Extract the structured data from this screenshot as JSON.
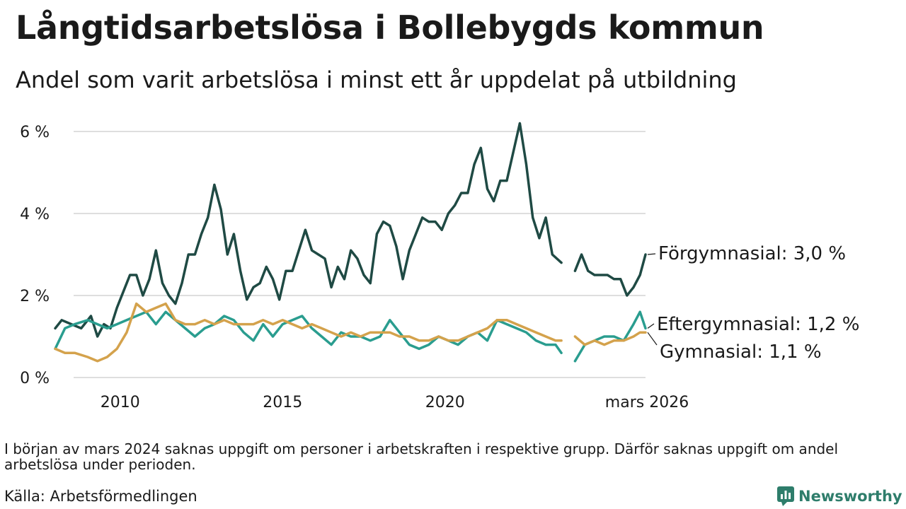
{
  "header": {
    "title": "Långtidsarbetslösa i Bollebygds kommun",
    "subtitle": "Andel som varit arbetslösa i minst ett år uppdelat på utbildning"
  },
  "colors": {
    "forgymnasial": "#1f4a44",
    "eftergymnasial": "#2a9d8f",
    "gymnasial": "#d4a24c",
    "grid": "#dedede",
    "brand": "#2e7d6b"
  },
  "chart_data": {
    "type": "line",
    "ylim": [
      0,
      6
    ],
    "y_ticks": [
      {
        "value": 0,
        "label": "0 %"
      },
      {
        "value": 2,
        "label": "2 %"
      },
      {
        "value": 4,
        "label": "4 %"
      },
      {
        "value": 6,
        "label": "6 %"
      }
    ],
    "x_range": [
      2008.0,
      2026.17
    ],
    "x_ticks": [
      {
        "value": 2010,
        "label": "2010"
      },
      {
        "value": 2015,
        "label": "2015"
      },
      {
        "value": 2020,
        "label": "2020"
      },
      {
        "value": 2026.17,
        "label": "mars 2026"
      }
    ],
    "gap": [
      2023.58,
      2024.0
    ],
    "series": [
      {
        "name": "Förgymnasial",
        "label": "Förgymnasial: 3,0 %",
        "color": "#1f4a44",
        "x": [
          2008.0,
          2008.2,
          2008.5,
          2008.8,
          2009.1,
          2009.3,
          2009.5,
          2009.7,
          2009.9,
          2010.1,
          2010.3,
          2010.5,
          2010.7,
          2010.9,
          2011.1,
          2011.3,
          2011.5,
          2011.7,
          2011.9,
          2012.1,
          2012.3,
          2012.5,
          2012.7,
          2012.9,
          2013.1,
          2013.3,
          2013.5,
          2013.7,
          2013.9,
          2014.1,
          2014.3,
          2014.5,
          2014.7,
          2014.9,
          2015.1,
          2015.3,
          2015.5,
          2015.7,
          2015.9,
          2016.1,
          2016.3,
          2016.5,
          2016.7,
          2016.9,
          2017.1,
          2017.3,
          2017.5,
          2017.7,
          2017.9,
          2018.1,
          2018.3,
          2018.5,
          2018.7,
          2018.9,
          2019.1,
          2019.3,
          2019.5,
          2019.7,
          2019.9,
          2020.1,
          2020.3,
          2020.5,
          2020.7,
          2020.9,
          2021.1,
          2021.3,
          2021.5,
          2021.7,
          2021.9,
          2022.1,
          2022.3,
          2022.5,
          2022.7,
          2022.9,
          2023.1,
          2023.3,
          2023.58,
          2024.0,
          2024.2,
          2024.4,
          2024.6,
          2024.8,
          2025.0,
          2025.2,
          2025.4,
          2025.6,
          2025.8,
          2026.0,
          2026.17
        ],
        "y": [
          1.2,
          1.4,
          1.3,
          1.2,
          1.5,
          1.0,
          1.3,
          1.2,
          1.7,
          2.1,
          2.5,
          2.5,
          2.0,
          2.4,
          3.1,
          2.3,
          2.0,
          1.8,
          2.3,
          3.0,
          3.0,
          3.5,
          3.9,
          4.7,
          4.1,
          3.0,
          3.5,
          2.6,
          1.9,
          2.2,
          2.3,
          2.7,
          2.4,
          1.9,
          2.6,
          2.6,
          3.1,
          3.6,
          3.1,
          3.0,
          2.9,
          2.2,
          2.7,
          2.4,
          3.1,
          2.9,
          2.5,
          2.3,
          3.5,
          3.8,
          3.7,
          3.2,
          2.4,
          3.1,
          3.5,
          3.9,
          3.8,
          3.8,
          3.6,
          4.0,
          4.2,
          4.5,
          4.5,
          5.2,
          5.6,
          4.6,
          4.3,
          4.8,
          4.8,
          5.5,
          6.2,
          5.2,
          3.9,
          3.4,
          3.9,
          3.0,
          2.8,
          2.6,
          3.0,
          2.6,
          2.5,
          2.5,
          2.5,
          2.4,
          2.4,
          2.0,
          2.2,
          2.5,
          3.0
        ]
      },
      {
        "name": "Eftergymnasial",
        "label": "Eftergymnasial: 1,2 %",
        "color": "#2a9d8f",
        "x": [
          2008.0,
          2008.3,
          2008.6,
          2009.0,
          2009.3,
          2009.6,
          2009.9,
          2010.2,
          2010.5,
          2010.8,
          2011.1,
          2011.4,
          2011.7,
          2012.0,
          2012.3,
          2012.6,
          2012.9,
          2013.2,
          2013.5,
          2013.8,
          2014.1,
          2014.4,
          2014.7,
          2015.0,
          2015.3,
          2015.6,
          2015.9,
          2016.2,
          2016.5,
          2016.8,
          2017.1,
          2017.4,
          2017.7,
          2018.0,
          2018.3,
          2018.6,
          2018.9,
          2019.2,
          2019.5,
          2019.8,
          2020.1,
          2020.4,
          2020.7,
          2021.0,
          2021.3,
          2021.6,
          2021.9,
          2022.2,
          2022.5,
          2022.8,
          2023.1,
          2023.4,
          2023.58,
          2024.0,
          2024.3,
          2024.6,
          2024.9,
          2025.2,
          2025.5,
          2025.8,
          2026.0,
          2026.17
        ],
        "y": [
          0.7,
          1.2,
          1.3,
          1.4,
          1.3,
          1.2,
          1.3,
          1.4,
          1.5,
          1.6,
          1.3,
          1.6,
          1.4,
          1.2,
          1.0,
          1.2,
          1.3,
          1.5,
          1.4,
          1.1,
          0.9,
          1.3,
          1.0,
          1.3,
          1.4,
          1.5,
          1.2,
          1.0,
          0.8,
          1.1,
          1.0,
          1.0,
          0.9,
          1.0,
          1.4,
          1.1,
          0.8,
          0.7,
          0.8,
          1.0,
          0.9,
          0.8,
          1.0,
          1.1,
          0.9,
          1.4,
          1.3,
          1.2,
          1.1,
          0.9,
          0.8,
          0.8,
          0.6,
          0.4,
          0.8,
          0.9,
          1.0,
          1.0,
          0.9,
          1.3,
          1.6,
          1.2
        ]
      },
      {
        "name": "Gymnasial",
        "label": "Gymnasial: 1,1 %",
        "color": "#d4a24c",
        "x": [
          2008.0,
          2008.3,
          2008.6,
          2009.0,
          2009.3,
          2009.6,
          2009.9,
          2010.2,
          2010.5,
          2010.8,
          2011.1,
          2011.4,
          2011.7,
          2012.0,
          2012.3,
          2012.6,
          2012.9,
          2013.2,
          2013.5,
          2013.8,
          2014.1,
          2014.4,
          2014.7,
          2015.0,
          2015.3,
          2015.6,
          2015.9,
          2016.2,
          2016.5,
          2016.8,
          2017.1,
          2017.4,
          2017.7,
          2018.0,
          2018.3,
          2018.6,
          2018.9,
          2019.2,
          2019.5,
          2019.8,
          2020.1,
          2020.4,
          2020.7,
          2021.0,
          2021.3,
          2021.6,
          2021.9,
          2022.2,
          2022.5,
          2022.8,
          2023.1,
          2023.4,
          2023.58,
          2024.0,
          2024.3,
          2024.6,
          2024.9,
          2025.2,
          2025.5,
          2025.8,
          2026.0,
          2026.17
        ],
        "y": [
          0.7,
          0.6,
          0.6,
          0.5,
          0.4,
          0.5,
          0.7,
          1.1,
          1.8,
          1.6,
          1.7,
          1.8,
          1.4,
          1.3,
          1.3,
          1.4,
          1.3,
          1.4,
          1.3,
          1.3,
          1.3,
          1.4,
          1.3,
          1.4,
          1.3,
          1.2,
          1.3,
          1.2,
          1.1,
          1.0,
          1.1,
          1.0,
          1.1,
          1.1,
          1.1,
          1.0,
          1.0,
          0.9,
          0.9,
          1.0,
          0.9,
          0.9,
          1.0,
          1.1,
          1.2,
          1.4,
          1.4,
          1.3,
          1.2,
          1.1,
          1.0,
          0.9,
          0.9,
          1.0,
          0.8,
          0.9,
          0.8,
          0.9,
          0.9,
          1.0,
          1.1,
          1.1
        ]
      }
    ]
  },
  "footer": {
    "note": "I början av mars 2024 saknas uppgift om personer i arbetskraften i respektive grupp. Därför saknas uppgift om andel arbetslösa under perioden.",
    "source": "Källa: Arbetsförmedlingen",
    "brand": "Newsworthy"
  }
}
